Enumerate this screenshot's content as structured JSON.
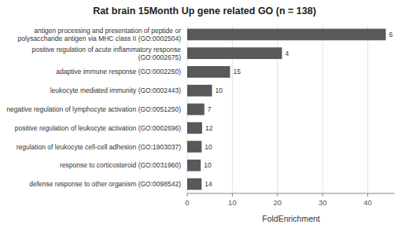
{
  "chart_data": {
    "type": "bar",
    "orientation": "horizontal",
    "title": "Rat brain 15Month Up gene related GO (n = 138)",
    "xlabel": "FoldEnrichment",
    "categories": [
      "defense response to other organism (GO:0098542)",
      "response to corticosteroid (GO:0031960)",
      "regulation of leukocyte cell-cell adhesion (GO:1903037)",
      "positive regulation of leukocyte activation (GO:0002696)",
      "negative regulation of lymphocyte activation (GO:0051250)",
      "leukocyte mediated immunity (GO:0002443)",
      "adaptive immune response (GO:0002250)",
      "positive regulation of acute inflammatory response (GO:0002675)",
      "antigen processing and presentation of peptide or polysaccharide antigen via MHC class II (GO:0002504)"
    ],
    "values": [
      3.2,
      3.0,
      3.2,
      3.3,
      3.8,
      5.5,
      9.5,
      21.0,
      44.0
    ],
    "gene_counts": [
      14,
      10,
      10,
      12,
      7,
      10,
      15,
      4,
      6
    ],
    "color": "#595959",
    "xlim": [
      0,
      46
    ],
    "xticks": [
      0,
      10,
      20,
      30,
      40
    ],
    "grid": true
  }
}
